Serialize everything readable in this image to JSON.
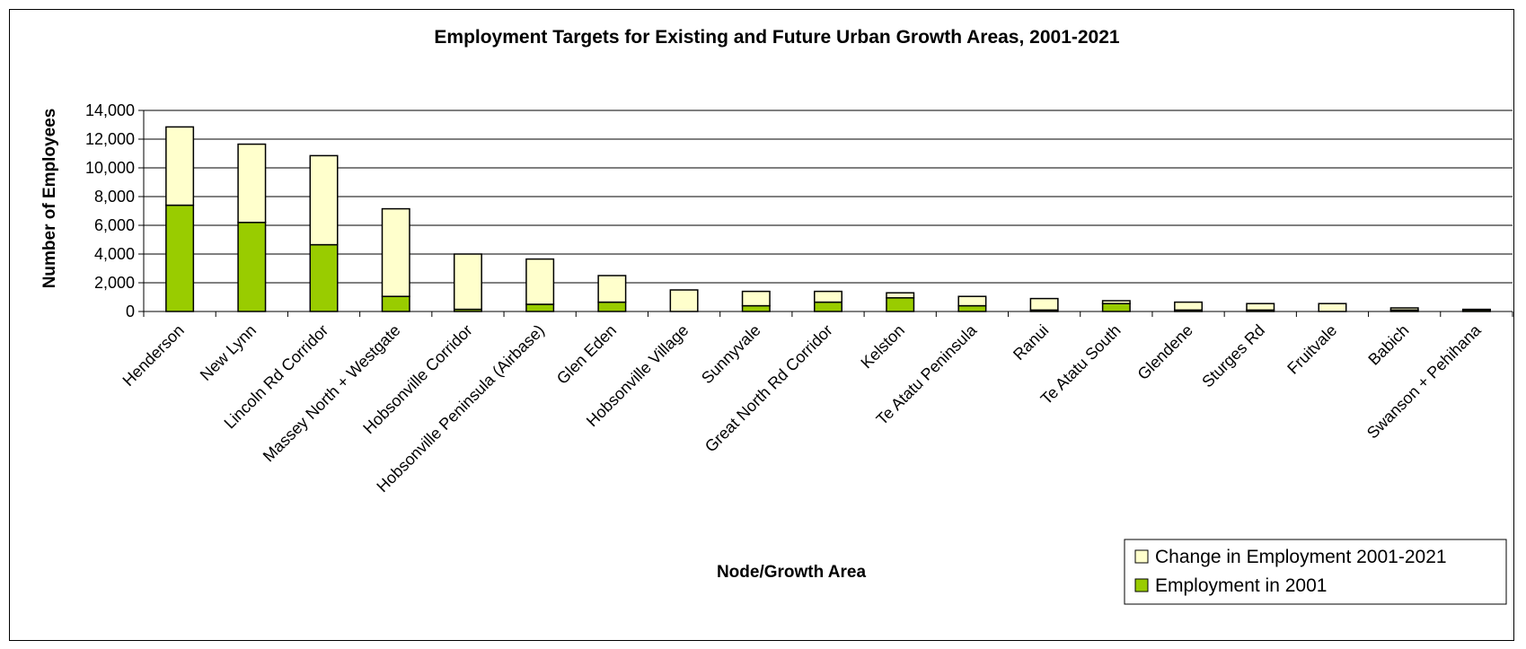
{
  "chart_data": {
    "type": "bar",
    "stacked": true,
    "title": "Employment Targets for Existing and Future Urban Growth Areas, 2001-2021",
    "xlabel": "Node/Growth Area",
    "ylabel": "Number of Employees",
    "ylim": [
      0,
      14000
    ],
    "yticks": [
      0,
      2000,
      4000,
      6000,
      8000,
      10000,
      12000,
      14000
    ],
    "ytick_labels": [
      "0",
      "2,000",
      "4,000",
      "6,000",
      "8,000",
      "10,000",
      "12,000",
      "14,000"
    ],
    "grid": true,
    "legend_position": "bottom-right",
    "categories": [
      "Henderson",
      "New Lynn",
      "Lincoln Rd Corridor",
      "Massey North + Westgate",
      "Hobsonville Corridor",
      "Hobsonville Peninsula (Airbase)",
      "Glen Eden",
      "Hobsonville Village",
      "Sunnyvale",
      "Great North Rd Corridor",
      "Kelston",
      "Te Atatu Peninsula",
      "Ranui",
      "Te Atatu South",
      "Glendene",
      "Sturges Rd",
      "Fruitvale",
      "Babich",
      "Swanson + Pehihana"
    ],
    "series": [
      {
        "name": "Employment in 2001",
        "color": "#99CC00",
        "values": [
          7400,
          6200,
          4650,
          1050,
          150,
          500,
          650,
          0,
          400,
          650,
          950,
          400,
          100,
          550,
          100,
          100,
          0,
          100,
          100
        ]
      },
      {
        "name": "Change in Employment 2001-2021",
        "color": "#FFFFCC",
        "values": [
          5450,
          5450,
          6200,
          6100,
          3850,
          3150,
          1850,
          1500,
          1000,
          750,
          350,
          650,
          800,
          200,
          550,
          450,
          550,
          150,
          50
        ]
      }
    ],
    "legend": [
      {
        "label": "Change in Employment 2001-2021",
        "color": "#FFFFCC"
      },
      {
        "label": "Employment in 2001",
        "color": "#99CC00"
      }
    ]
  }
}
